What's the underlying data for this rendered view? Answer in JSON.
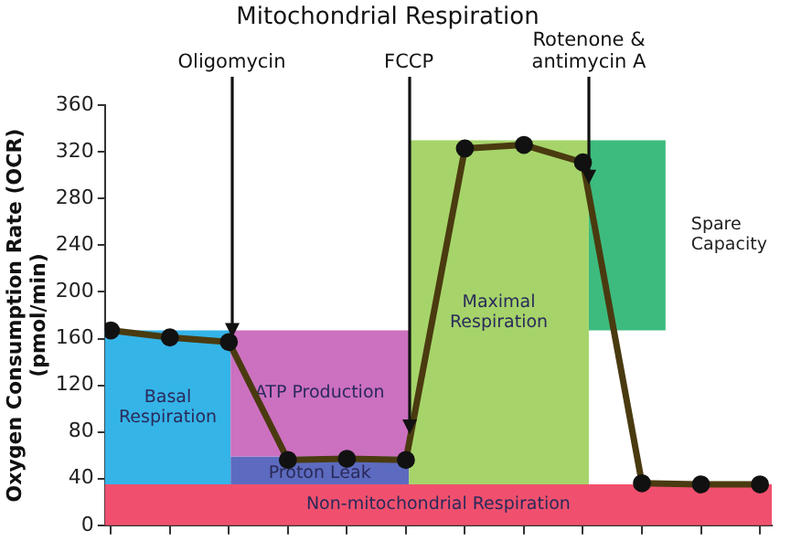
{
  "chart_data": {
    "type": "line",
    "title": "Mitochondrial Respiration",
    "ylabel": "Oxygen Consumption Rate (OCR) (pmol/min)",
    "categories": [
      null,
      null,
      null,
      null,
      null,
      null,
      null,
      null,
      null,
      null,
      null,
      null
    ],
    "ylim": [
      0,
      360
    ],
    "yticks": [
      0,
      40,
      80,
      120,
      160,
      200,
      240,
      280,
      320,
      360
    ],
    "tick_labels": "y",
    "grid": false,
    "legend": false,
    "marker": "circle",
    "series": [
      {
        "color": "#4a3a10",
        "values": [
          167,
          161,
          157,
          56,
          57,
          56,
          323,
          326,
          311,
          36,
          35,
          35
        ]
      }
    ],
    "bands": [
      {
        "axis": "y",
        "from": 0,
        "to": 35,
        "label": "Non-mitochondrial Respiration",
        "color": "#f0506e"
      },
      {
        "axis": "y",
        "from": 35,
        "to": 167,
        "label": "Basal Respiration",
        "color": "#35b4e8"
      },
      {
        "axis": "y",
        "from": 35,
        "to": 59,
        "label": "Proton Leak",
        "color": "#5c6bbf"
      },
      {
        "axis": "y",
        "from": 59,
        "to": 167,
        "label": "ATP Production",
        "color": "#cc70c0"
      },
      {
        "axis": "y",
        "from": 35,
        "to": 330,
        "label": "Maximal Respiration",
        "color": "#a6d46a"
      },
      {
        "axis": "y",
        "from": 167,
        "to": 330,
        "label": "Spare Capacity",
        "color": "#3dbb7e"
      }
    ],
    "annotations": [
      "Oligomycin",
      "FCCP",
      "Rotenone & antimycin A"
    ]
  }
}
